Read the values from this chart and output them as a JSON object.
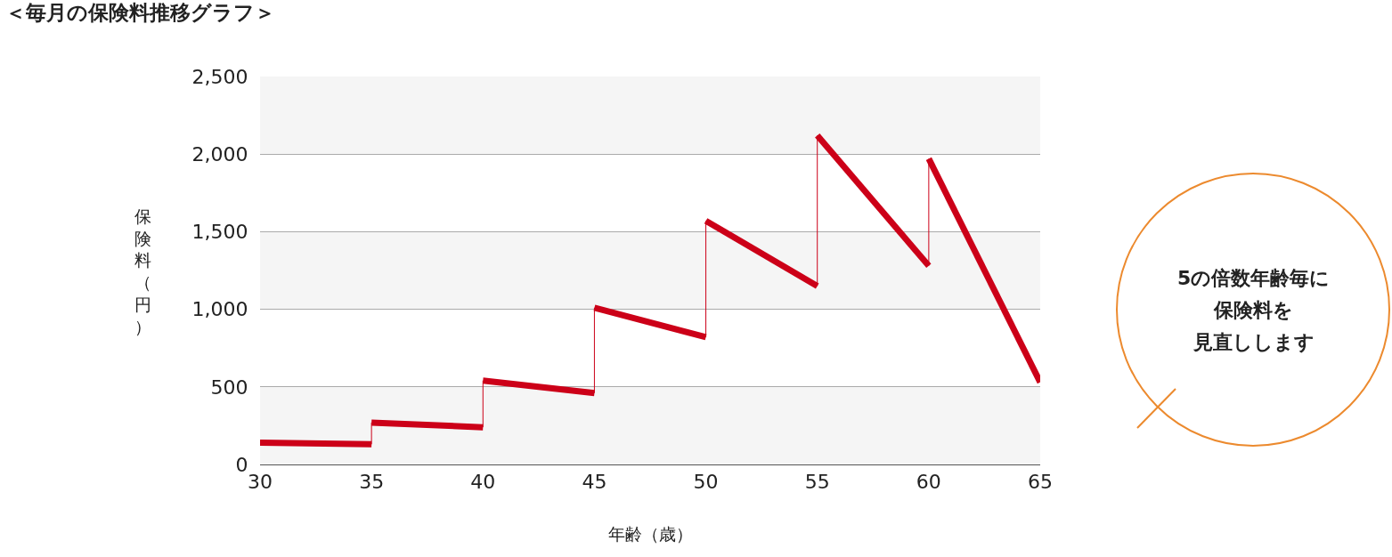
{
  "chart_data": {
    "type": "line",
    "title": "＜毎月の保険料推移グラフ＞",
    "xlabel": "年齢（歳）",
    "ylabel": "保険料（円）",
    "series": [
      {
        "color": "#cc0018",
        "x": [
          30,
          35
        ],
        "values": [
          140,
          130
        ],
        "errors": [
          null,
          [
            130,
            270
          ]
        ]
      },
      {
        "color": "#cc0018",
        "x": [
          35,
          40
        ],
        "values": [
          270,
          240
        ],
        "errors": [
          null,
          [
            240,
            540
          ]
        ]
      },
      {
        "color": "#cc0018",
        "x": [
          40,
          45
        ],
        "values": [
          540,
          460
        ],
        "errors": [
          null,
          [
            460,
            1010
          ]
        ]
      },
      {
        "color": "#cc0018",
        "x": [
          45,
          50
        ],
        "values": [
          1010,
          820
        ],
        "errors": [
          null,
          [
            820,
            1570
          ]
        ]
      },
      {
        "color": "#cc0018",
        "x": [
          50,
          55
        ],
        "values": [
          1570,
          1150
        ],
        "errors": [
          null,
          [
            1150,
            2120
          ]
        ]
      },
      {
        "color": "#cc0018",
        "x": [
          55,
          60
        ],
        "values": [
          2120,
          1280
        ],
        "errors": [
          null,
          [
            1280,
            1970
          ]
        ]
      },
      {
        "color": "#cc0018",
        "x": [
          60,
          65
        ],
        "values": [
          1970,
          530
        ]
      }
    ],
    "xlim": [
      30,
      65
    ],
    "xticks": [
      30,
      35,
      40,
      45,
      50,
      55,
      60,
      65
    ],
    "ylim": [
      0,
      2500
    ],
    "yticks": [
      0,
      500,
      {
        "value": 1000,
        "label": "1,000"
      },
      {
        "value": 1500,
        "label": "1,500"
      },
      {
        "value": 2000,
        "label": "2,000"
      },
      {
        "value": 2500,
        "label": "2,500"
      }
    ],
    "bands": [
      {
        "axis": "y",
        "from": 0,
        "to": 500,
        "color": "#f5f5f5"
      },
      {
        "axis": "y",
        "from": 1000,
        "to": 1500,
        "color": "#f5f5f5"
      },
      {
        "axis": "y",
        "from": 2000,
        "to": 2500,
        "color": "#f5f5f5"
      }
    ],
    "annotations": [
      "5の倍数年齢毎に",
      "保険料を",
      "見直しします"
    ],
    "grid": "y",
    "marker": "none",
    "line_style": "solid"
  }
}
